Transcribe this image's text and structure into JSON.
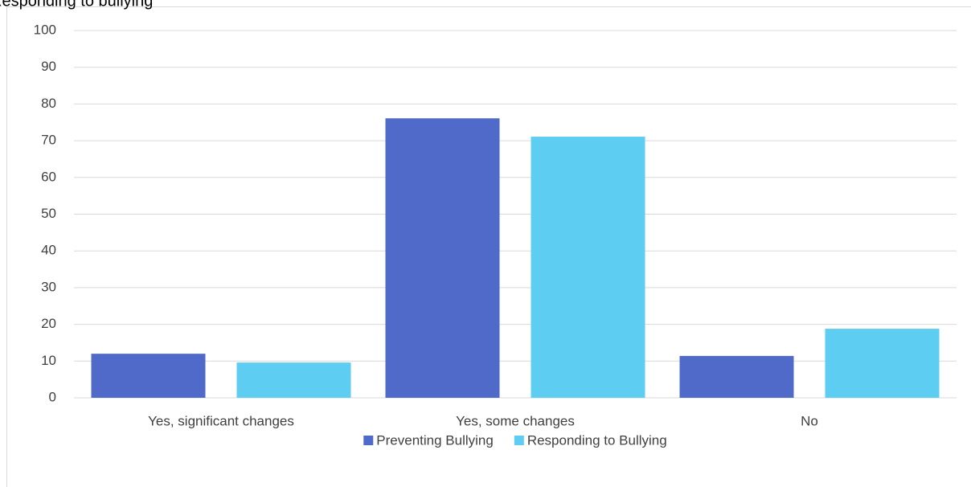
{
  "chart_data": {
    "type": "bar",
    "title": "Responding to bullying",
    "categories": [
      "Yes, significant changes",
      "Yes, some changes",
      "No"
    ],
    "series": [
      {
        "name": "Preventing Bullying",
        "color": "#4f6ac9",
        "values": [
          12.0,
          76.1,
          11.4
        ]
      },
      {
        "name": "Responding to Bullying",
        "color": "#5ecdf2",
        "values": [
          9.6,
          71.1,
          18.8
        ]
      }
    ],
    "ylim": [
      0,
      100
    ],
    "yticks": [
      0,
      10,
      20,
      30,
      40,
      50,
      60,
      70,
      80,
      90,
      100
    ],
    "grid": true,
    "legend": "bottom"
  }
}
